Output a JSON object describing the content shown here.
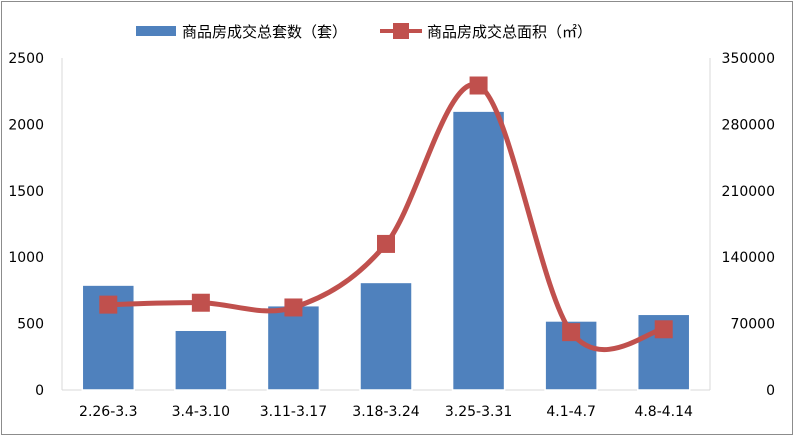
{
  "chart_data": {
    "type": "bar+line",
    "categories": [
      "2.26-3.3",
      "3.4-3.10",
      "3.11-3.17",
      "3.18-3.24",
      "3.25-3.31",
      "4.1-4.7",
      "4.8-4.14"
    ],
    "series": [
      {
        "name": "商品房成交总套数（套）",
        "type": "bar",
        "axis": "left",
        "color": "#4f81bd",
        "values": [
          790,
          450,
          635,
          810,
          2100,
          520,
          570
        ]
      },
      {
        "name": "商品房成交总面积（㎡）",
        "type": "line",
        "axis": "right",
        "smooth": true,
        "color": "#c0504d",
        "values": [
          90000,
          92000,
          87000,
          154000,
          321000,
          61000,
          64000
        ]
      }
    ],
    "y_left": {
      "min": 0,
      "max": 2500,
      "ticks": [
        "0",
        "500",
        "1000",
        "1500",
        "2000",
        "2500"
      ]
    },
    "y_right": {
      "min": 0,
      "max": 350000,
      "ticks": [
        "0",
        "70000",
        "140000",
        "210000",
        "280000",
        "350000"
      ]
    },
    "legend_position": "top",
    "grid": false
  }
}
